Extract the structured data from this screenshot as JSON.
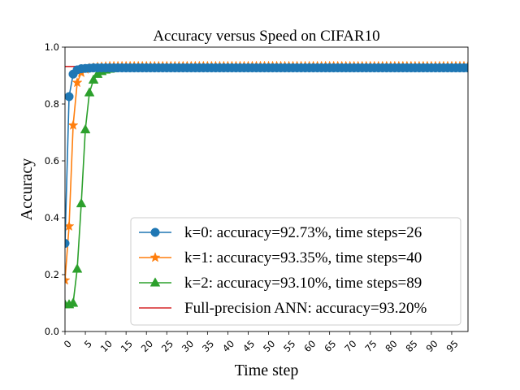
{
  "chart_data": {
    "type": "line",
    "title": "Accuracy versus Speed on CIFAR10",
    "xlabel": "Time step",
    "ylabel": "Accuracy",
    "xlim": [
      0,
      99
    ],
    "ylim": [
      0.0,
      1.0
    ],
    "x_ticks": [
      "0",
      "5",
      "10",
      "15",
      "20",
      "25",
      "30",
      "35",
      "40",
      "45",
      "50",
      "55",
      "60",
      "65",
      "70",
      "75",
      "80",
      "85",
      "90",
      "95"
    ],
    "x_ticks_labelled": [
      "0",
      "5",
      "10",
      "15",
      "20",
      "25",
      "30",
      "35",
      "40",
      "45",
      "50",
      "55",
      "60",
      "65",
      "70",
      "75",
      "80",
      "85",
      "90",
      "95"
    ],
    "y_ticks": [
      "0.0",
      "0.2",
      "0.4",
      "0.6",
      "0.8",
      "1.0"
    ],
    "grid": false,
    "legend_position": "lower-right",
    "series": [
      {
        "name": "k=0: accuracy=92.73%, time steps=26",
        "color": "#1f77b4",
        "marker": "circle",
        "x": [
          0,
          1,
          2,
          3,
          4,
          5,
          6,
          7,
          8,
          9,
          10
        ],
        "y": [
          0.31,
          0.826,
          0.905,
          0.92,
          0.924,
          0.925,
          0.926,
          0.927,
          0.927,
          0.927,
          0.927
        ],
        "plateau": 0.927
      },
      {
        "name": "k=1: accuracy=93.35%, time steps=40",
        "color": "#ff7f0e",
        "marker": "star",
        "x": [
          0,
          1,
          2,
          3,
          4,
          5,
          6,
          7,
          8,
          9,
          10
        ],
        "y": [
          0.18,
          0.37,
          0.725,
          0.875,
          0.91,
          0.922,
          0.926,
          0.928,
          0.93,
          0.931,
          0.932
        ],
        "plateau": 0.933
      },
      {
        "name": "k=2: accuracy=93.10%, time steps=89",
        "color": "#2ca02c",
        "marker": "triangle",
        "x": [
          0,
          1,
          2,
          3,
          4,
          5,
          6,
          7,
          8,
          9,
          10,
          11,
          12,
          13,
          14,
          15
        ],
        "y": [
          0.095,
          0.095,
          0.1,
          0.22,
          0.45,
          0.71,
          0.84,
          0.885,
          0.905,
          0.915,
          0.92,
          0.923,
          0.925,
          0.927,
          0.928,
          0.929
        ],
        "plateau": 0.93
      },
      {
        "name": "Full-precision ANN: accuracy=93.20%",
        "color": "#d62728",
        "marker": "none",
        "value": 0.932
      }
    ]
  }
}
